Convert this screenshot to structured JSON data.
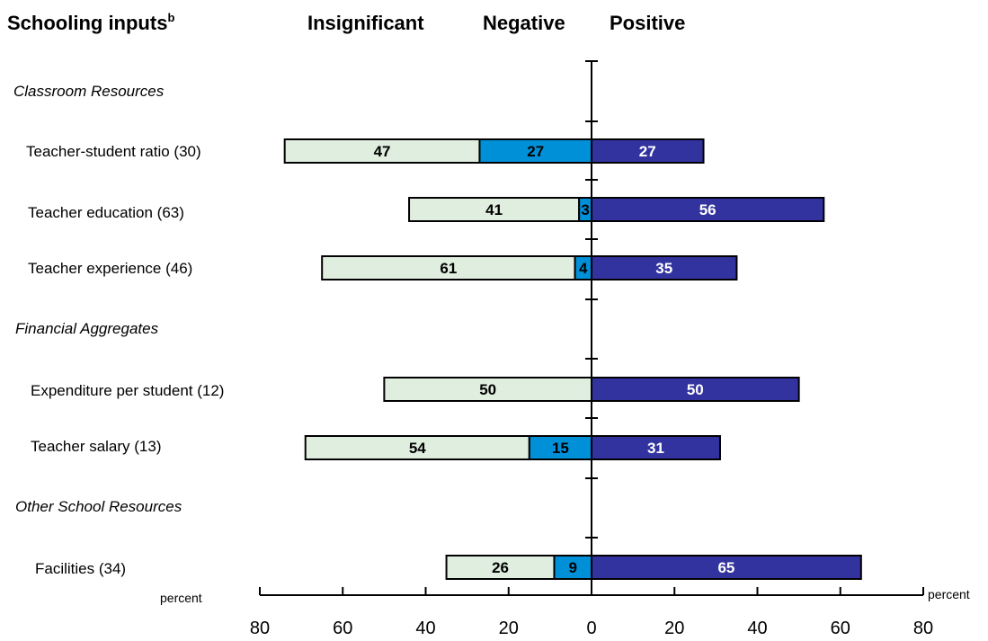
{
  "header": {
    "title": "Schooling inputs",
    "title_sup": "b",
    "col_insignificant": "Insignificant",
    "col_negative": "Negative",
    "col_positive": "Positive"
  },
  "axis": {
    "unit_left": "percent",
    "unit_right": "percent",
    "ticks": [
      "80",
      "60",
      "40",
      "20",
      "0",
      "20",
      "40",
      "60",
      "80"
    ]
  },
  "colors": {
    "insignificant": "#e0eee0",
    "negative": "#0090d8",
    "positive": "#3333a0"
  },
  "chart_data": {
    "type": "bar",
    "orientation": "horizontal-diverging",
    "xlim": [
      -80,
      80
    ],
    "xlabel": "percent",
    "groups": [
      "Classroom Resources",
      "Financial Aggregates",
      "Other School Resources"
    ],
    "categories": [
      "Teacher-student ratio (30)",
      "Teacher education (63)",
      "Teacher experience (46)",
      "Expenditure per student (12)",
      "Teacher salary (13)",
      "Facilities (34)"
    ],
    "series": [
      {
        "name": "Insignificant",
        "values": [
          47,
          41,
          61,
          50,
          54,
          26
        ]
      },
      {
        "name": "Negative",
        "values": [
          27,
          3,
          4,
          0,
          15,
          9
        ]
      },
      {
        "name": "Positive",
        "values": [
          27,
          56,
          35,
          50,
          31,
          65
        ]
      }
    ]
  }
}
